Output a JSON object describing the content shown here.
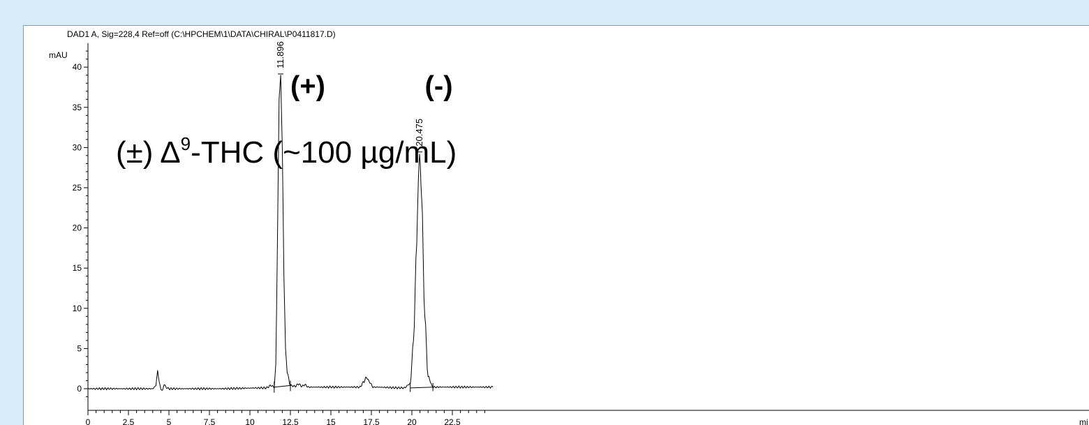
{
  "chart_data": {
    "type": "line",
    "title": "DAD1 A, Sig=228,4 Ref=off (C:\\HPCHEM\\1\\DATA\\CHIRAL\\P0411817.D)",
    "ylabel": "mAU",
    "xlabel": "mi",
    "xlim": [
      0,
      25
    ],
    "ylim": [
      -2,
      43
    ],
    "x_ticks": [
      "0",
      "2.5",
      "5",
      "7.5",
      "10",
      "12.5",
      "15",
      "17.5",
      "20",
      "22.5"
    ],
    "y_ticks": [
      "0",
      "5",
      "10",
      "15",
      "20",
      "25",
      "30",
      "35",
      "40"
    ],
    "grid": false,
    "series": [
      {
        "values_description": "",
        "x": [
          0,
          4.0,
          4.2,
          4.3,
          4.4,
          4.5,
          4.6,
          4.7,
          4.8,
          5.0,
          8.0,
          11.0,
          11.3,
          11.5,
          11.6,
          11.7,
          11.8,
          11.9,
          12.0,
          12.1,
          12.2,
          12.3,
          12.5,
          12.8,
          13.0,
          13.2,
          13.4,
          13.6,
          16.8,
          17.0,
          17.2,
          17.4,
          17.6,
          19.5,
          19.9,
          20.1,
          20.3,
          20.4,
          20.475,
          20.6,
          20.8,
          21.0,
          21.3,
          25.0
        ],
        "y": [
          0,
          0,
          0.4,
          2.3,
          0.8,
          0.0,
          -0.3,
          0.6,
          0.2,
          0.0,
          0.0,
          0.1,
          0.4,
          0.2,
          3.0,
          18.0,
          36.0,
          39.0,
          30.0,
          14.0,
          5.0,
          2.0,
          0.4,
          0.3,
          0.6,
          0.3,
          0.5,
          0.2,
          0.2,
          0.8,
          1.4,
          0.8,
          0.2,
          0.1,
          0.6,
          6.0,
          18.0,
          26.0,
          29.3,
          24.0,
          9.0,
          1.5,
          0.2,
          0.2
        ]
      }
    ],
    "peak_labels": [
      {
        "x": 11.896,
        "y": 39.5,
        "text": "11.896"
      },
      {
        "x": 20.475,
        "y": 29.8,
        "text": "20.475"
      }
    ],
    "annotations": [
      {
        "text": "(+)",
        "x": 12.5,
        "y": 36.5
      },
      {
        "text": "(-)",
        "x": 20.8,
        "y": 36.5
      }
    ],
    "sample_label": {
      "prefix": "(±) Δ",
      "superscript": "9",
      "suffix": "-THC (~100 µg/mL)"
    }
  },
  "colors": {
    "background": "#d6ecf8",
    "panel": "#ffffff",
    "trace": "#000000"
  }
}
